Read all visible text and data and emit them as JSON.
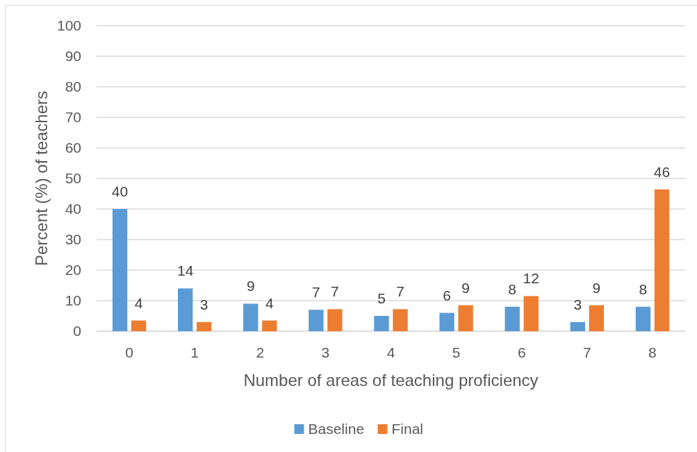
{
  "chart_data": {
    "type": "bar",
    "xlabel": "Number of areas of teaching proficiency",
    "ylabel": "Percent (%) of teachers",
    "categories": [
      "0",
      "1",
      "2",
      "3",
      "4",
      "5",
      "6",
      "7",
      "8"
    ],
    "series": [
      {
        "name": "Baseline",
        "color": "#5b9bd5",
        "values": [
          40,
          14,
          9,
          7,
          5,
          6,
          8,
          3,
          8
        ],
        "value_labels": [
          "40",
          "14",
          "9",
          "7",
          "5",
          "6",
          "8",
          "3",
          "8"
        ]
      },
      {
        "name": "Final",
        "color": "#ed7d31",
        "values": [
          3.5,
          3,
          3.5,
          7.2,
          7.2,
          8.5,
          11.5,
          8.5,
          46.4
        ],
        "value_labels": [
          "4",
          "3",
          "4",
          "7",
          "7",
          "9",
          "12",
          "9",
          "46"
        ]
      }
    ],
    "ylim": [
      0,
      100
    ],
    "yticks": [
      0,
      10,
      20,
      30,
      40,
      50,
      60,
      70,
      80,
      90,
      100
    ],
    "grid": "y",
    "legend": "bottom"
  }
}
